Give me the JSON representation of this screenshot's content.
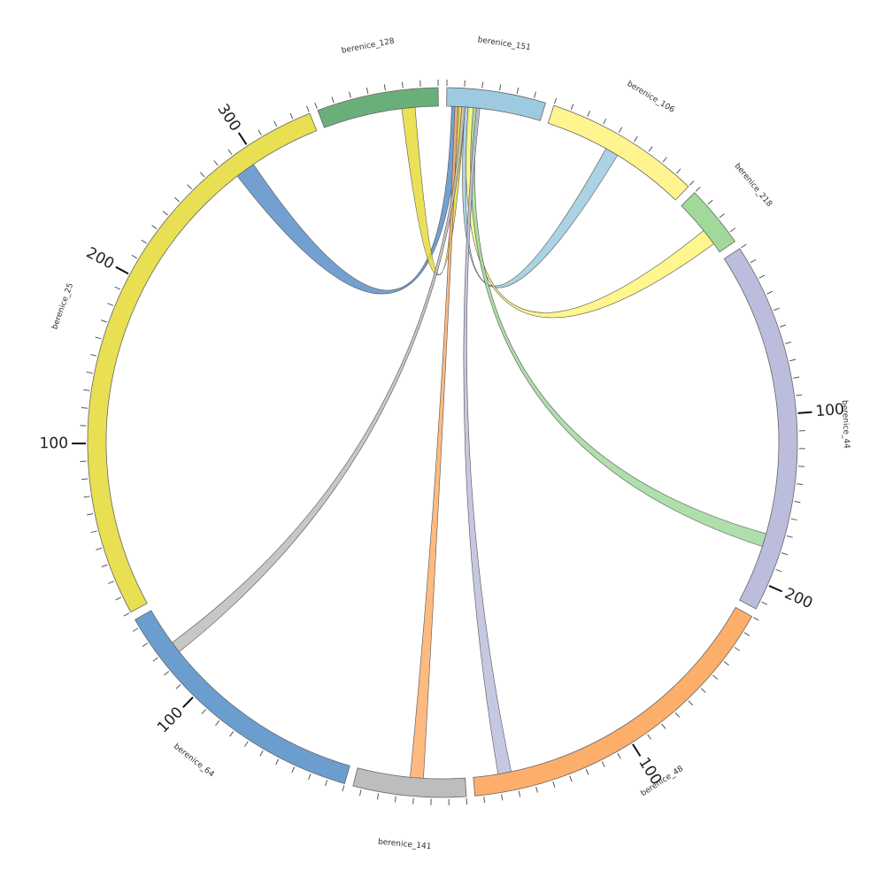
{
  "chart_data": {
    "type": "chord",
    "minor_tick_step": 10,
    "segments": [
      {
        "name": "berenice_151",
        "length": 57,
        "color": "#9ecae1",
        "ticks": []
      },
      {
        "name": "berenice_106",
        "length": 90,
        "color": "#fff48f",
        "ticks": []
      },
      {
        "name": "berenice_218",
        "length": 36,
        "color": "#a1d99b",
        "ticks": []
      },
      {
        "name": "berenice_44",
        "length": 215,
        "color": "#bcbddc",
        "ticks": [
          100,
          200
        ]
      },
      {
        "name": "berenice_48",
        "length": 195,
        "color": "#fdae6b",
        "ticks": [
          100
        ]
      },
      {
        "name": "berenice_141",
        "length": 65,
        "color": "#bdbdbd",
        "ticks": []
      },
      {
        "name": "berenice_64",
        "length": 155,
        "color": "#6b9ecf",
        "ticks": [
          100
        ]
      },
      {
        "name": "berenice_25",
        "length": 340,
        "color": "#e8df52",
        "ticks": [
          100,
          200,
          300
        ]
      },
      {
        "name": "berenice_128",
        "length": 70,
        "color": "#6aaf7a",
        "ticks": []
      }
    ],
    "links": [
      {
        "source": "berenice_25",
        "source_start": 285,
        "source_end": 297,
        "target": "berenice_151",
        "target_start": 3,
        "target_end": 8,
        "color": "#5b8fc9"
      },
      {
        "source": "berenice_128",
        "source_start": 48,
        "source_end": 56,
        "target": "berenice_151",
        "target_start": 7,
        "target_end": 11,
        "color": "#e6dc3c"
      },
      {
        "source": "berenice_106",
        "source_start": 38,
        "source_end": 46,
        "target": "berenice_151",
        "target_start": 11,
        "target_end": 14,
        "color": "#9ecae1"
      },
      {
        "source": "berenice_218",
        "source_start": 20,
        "source_end": 30,
        "target": "berenice_151",
        "target_start": 13,
        "target_end": 17,
        "color": "#fff57a"
      },
      {
        "source": "berenice_44",
        "source_start": 172,
        "source_end": 180,
        "target": "berenice_151",
        "target_start": 16,
        "target_end": 19,
        "color": "#a1d99b"
      },
      {
        "source": "berenice_48",
        "source_start": 172,
        "source_end": 180,
        "target": "berenice_151",
        "target_start": 18,
        "target_end": 20,
        "color": "#bcbddc"
      },
      {
        "source": "berenice_141",
        "source_start": 25,
        "source_end": 33,
        "target": "berenice_151",
        "target_start": 5,
        "target_end": 7,
        "color": "#fdae6b"
      },
      {
        "source": "berenice_64",
        "source_start": 125,
        "source_end": 132,
        "target": "berenice_151",
        "target_start": 9,
        "target_end": 11,
        "color": "#bdbdbd"
      }
    ]
  }
}
